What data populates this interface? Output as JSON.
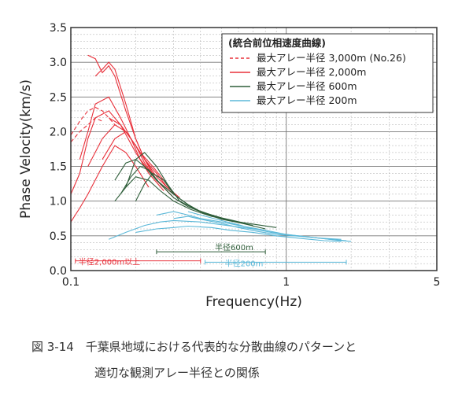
{
  "chart_data": {
    "type": "line",
    "x_scale": "log",
    "xlim": [
      0.1,
      5
    ],
    "ylim": [
      0.0,
      3.5
    ],
    "xlabel": "Frequency(Hz)",
    "ylabel": "Phase Velocity(km/s)",
    "x_ticks": [
      {
        "value": 0.1,
        "label": "0.1"
      },
      {
        "value": 1,
        "label": "1"
      },
      {
        "value": 5,
        "label": "5"
      }
    ],
    "y_ticks": [
      {
        "value": 0.0,
        "label": "0.0"
      },
      {
        "value": 0.5,
        "label": "0.5"
      },
      {
        "value": 1.0,
        "label": "1.0"
      },
      {
        "value": 1.5,
        "label": "1.5"
      },
      {
        "value": 2.0,
        "label": "2.0"
      },
      {
        "value": 2.5,
        "label": "2.5"
      },
      {
        "value": 3.0,
        "label": "3.0"
      },
      {
        "value": 3.5,
        "label": "3.5"
      }
    ],
    "grid": true,
    "legend_position": "top-right",
    "legend_title": "(統合前位相速度曲線)",
    "series": [
      {
        "name": "最大アレー半径 3,000m (No.26)",
        "color": "#e8303a",
        "dash": "dashed",
        "curves": [
          {
            "x": [
              0.1,
              0.11,
              0.12,
              0.13,
              0.14,
              0.15,
              0.16
            ],
            "y": [
              1.95,
              2.15,
              2.3,
              2.35,
              2.3,
              2.2,
              2.1
            ]
          },
          {
            "x": [
              0.1,
              0.11,
              0.12,
              0.13,
              0.14
            ],
            "y": [
              1.85,
              2.0,
              2.1,
              2.2,
              2.15
            ]
          }
        ]
      },
      {
        "name": "最大アレー半径 2,000m",
        "color": "#e8303a",
        "dash": "solid",
        "curves": [
          {
            "x": [
              0.12,
              0.13,
              0.14,
              0.15,
              0.16,
              0.18,
              0.2,
              0.22,
              0.25
            ],
            "y": [
              3.1,
              3.05,
              2.85,
              2.95,
              2.8,
              2.3,
              1.9,
              1.6,
              1.3
            ]
          },
          {
            "x": [
              0.13,
              0.14,
              0.15,
              0.16,
              0.18,
              0.2,
              0.22,
              0.25,
              0.28
            ],
            "y": [
              2.8,
              2.9,
              3.0,
              2.9,
              2.4,
              1.9,
              1.6,
              1.35,
              1.2
            ]
          },
          {
            "x": [
              0.1,
              0.11,
              0.12,
              0.13,
              0.15,
              0.17,
              0.2,
              0.23,
              0.27
            ],
            "y": [
              1.1,
              1.4,
              1.9,
              2.2,
              2.3,
              2.1,
              1.7,
              1.4,
              1.15
            ]
          },
          {
            "x": [
              0.1,
              0.11,
              0.12,
              0.14,
              0.16,
              0.18,
              0.2,
              0.23
            ],
            "y": [
              0.7,
              0.9,
              1.1,
              1.5,
              1.8,
              1.7,
              1.5,
              1.2
            ]
          },
          {
            "x": [
              0.11,
              0.12,
              0.13,
              0.15,
              0.17,
              0.19,
              0.21,
              0.25,
              0.3
            ],
            "y": [
              1.6,
              2.0,
              2.4,
              2.5,
              2.2,
              1.9,
              1.6,
              1.3,
              1.05
            ]
          },
          {
            "x": [
              0.12,
              0.14,
              0.16,
              0.18,
              0.2,
              0.22,
              0.25,
              0.3
            ],
            "y": [
              1.5,
              1.9,
              2.1,
              2.0,
              1.8,
              1.55,
              1.3,
              1.1
            ]
          },
          {
            "x": [
              0.14,
              0.16,
              0.18,
              0.2,
              0.22,
              0.25,
              0.28,
              0.32
            ],
            "y": [
              1.6,
              1.9,
              2.0,
              1.8,
              1.6,
              1.4,
              1.2,
              1.05
            ]
          },
          {
            "x": [
              0.15,
              0.17,
              0.19,
              0.21,
              0.24,
              0.27,
              0.3
            ],
            "y": [
              2.2,
              2.1,
              1.9,
              1.7,
              1.5,
              1.3,
              1.1
            ]
          }
        ]
      },
      {
        "name": "最大アレー半径 600m",
        "color": "#2f5e3a",
        "dash": "solid",
        "curves": [
          {
            "x": [
              0.16,
              0.18,
              0.2,
              0.22,
              0.25,
              0.3,
              0.35,
              0.4,
              0.5,
              0.6
            ],
            "y": [
              1.3,
              1.55,
              1.6,
              1.5,
              1.3,
              1.1,
              0.95,
              0.85,
              0.75,
              0.7
            ]
          },
          {
            "x": [
              0.17,
              0.19,
              0.21,
              0.23,
              0.26,
              0.3,
              0.35,
              0.42,
              0.5,
              0.7
            ],
            "y": [
              1.1,
              1.35,
              1.5,
              1.45,
              1.25,
              1.05,
              0.92,
              0.82,
              0.74,
              0.65
            ]
          },
          {
            "x": [
              0.18,
              0.2,
              0.22,
              0.25,
              0.28,
              0.32,
              0.38,
              0.45,
              0.55,
              0.8
            ],
            "y": [
              1.2,
              1.6,
              1.7,
              1.5,
              1.25,
              1.0,
              0.88,
              0.8,
              0.72,
              0.6
            ]
          },
          {
            "x": [
              0.2,
              0.22,
              0.24,
              0.27,
              0.3,
              0.35,
              0.4,
              0.5,
              0.65
            ],
            "y": [
              1.0,
              1.25,
              1.4,
              1.3,
              1.1,
              0.95,
              0.85,
              0.76,
              0.68
            ]
          },
          {
            "x": [
              0.16,
              0.18,
              0.2,
              0.23,
              0.26,
              0.3,
              0.36,
              0.45,
              0.6,
              0.9
            ],
            "y": [
              1.0,
              1.2,
              1.35,
              1.3,
              1.15,
              1.0,
              0.88,
              0.78,
              0.7,
              0.62
            ]
          }
        ]
      },
      {
        "name": "最大アレー半径 200m",
        "color": "#5bb8d8",
        "dash": "solid",
        "curves": [
          {
            "x": [
              0.25,
              0.3,
              0.35,
              0.4,
              0.5,
              0.6,
              0.8,
              1.0,
              1.3,
              1.6,
              1.9
            ],
            "y": [
              0.8,
              0.85,
              0.8,
              0.75,
              0.7,
              0.65,
              0.58,
              0.52,
              0.48,
              0.45,
              0.43
            ]
          },
          {
            "x": [
              0.3,
              0.35,
              0.4,
              0.5,
              0.6,
              0.75,
              0.9,
              1.1,
              1.4,
              1.8
            ],
            "y": [
              0.75,
              0.78,
              0.74,
              0.68,
              0.62,
              0.56,
              0.52,
              0.5,
              0.47,
              0.45
            ]
          },
          {
            "x": [
              0.2,
              0.25,
              0.3,
              0.35,
              0.45,
              0.55,
              0.7,
              0.9,
              1.2,
              1.5,
              1.8
            ],
            "y": [
              0.55,
              0.6,
              0.62,
              0.64,
              0.62,
              0.58,
              0.55,
              0.5,
              0.46,
              0.43,
              0.42
            ]
          },
          {
            "x": [
              0.35,
              0.4,
              0.5,
              0.6,
              0.7,
              0.85,
              1.0,
              1.3,
              1.7,
              2.0
            ],
            "y": [
              0.85,
              0.8,
              0.72,
              0.66,
              0.6,
              0.55,
              0.52,
              0.48,
              0.44,
              0.42
            ]
          },
          {
            "x": [
              0.15,
              0.18,
              0.22,
              0.26,
              0.3,
              0.4,
              0.5,
              0.7
            ],
            "y": [
              0.45,
              0.55,
              0.65,
              0.7,
              0.72,
              0.7,
              0.66,
              0.6
            ]
          }
        ]
      }
    ],
    "annotations": [
      {
        "text": "半径2,000m以上",
        "color": "#e8303a",
        "x_start": 0.105,
        "x_end": 0.4,
        "y": 0.14
      },
      {
        "text": "半径600m",
        "color": "#2f5e3a",
        "x_start": 0.25,
        "x_end": 0.8,
        "y": 0.27
      },
      {
        "text": "半径200m",
        "color": "#5bb8d8",
        "x_start": 0.42,
        "x_end": 1.9,
        "y": 0.12
      }
    ]
  },
  "caption_line1": "図 3-14　千葉県地域における代表的な分散曲線のパターンと",
  "caption_line2": "適切な観測アレー半径との関係"
}
